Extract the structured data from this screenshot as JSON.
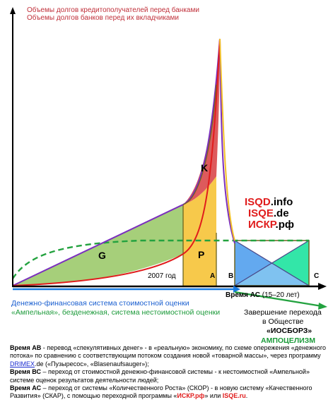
{
  "legend": {
    "line1": "Объемы долгов кредитополучателей перед банками",
    "line2": "Объемы долгов банков перед их вкладчиками"
  },
  "brand": {
    "line1_hl": "ISQD",
    "line1_rest": ".info",
    "line2_hl": "ISQE",
    "line2_rest": ".de",
    "line3_hl": "ИСКР",
    "line3_rest": ".рф"
  },
  "regions": {
    "g": "G",
    "k": "K",
    "p": "P"
  },
  "points": {
    "a": "A",
    "b": "B",
    "c": "C",
    "year": "2007 год"
  },
  "axis": {
    "time_label": "Время АС",
    "time_range": "(15–20 лет)"
  },
  "systems": {
    "blue": "Денежно-финансовая система стоимостной оценки",
    "green": "«Ампельная», безденежная, система нестоимостной оценки"
  },
  "completion": {
    "line1": "Завершение перехода",
    "line2": "в Обществе",
    "line3": "«ИОСБОРЗ»",
    "line4": "АМПОЦЕЛИЗМ"
  },
  "notes": {
    "ab_title": "Время АВ",
    "ab_text": " - перевод «спекулятивных денег» - в «реальную» экономику, по схеме опережения «денежного потока» по сравнению с соответствующим потоком создания новой «товарной массы», через программу ",
    "ab_link": "DRIMEX",
    "ab_tail": ".de («Пузыресос», «Blasenaufsauger»);",
    "bc_title": "Время ВС",
    "bc_text": " – переход от стоимостной денежно-финансовой системы - к нестоимостной «Ампельной» системе оценок результатов деятельности людей;",
    "ac_title": "Время АС",
    "ac_text": " – переход от системы «Количественного Роста» (СКОР) - в новую систему «Качественного Развития» (СКАР), с помощью переходной программы «",
    "ac_brand1": "ИСКР.рф",
    "ac_mid": "» или ",
    "ac_brand2": "ISQE.ru",
    "ac_end": "."
  },
  "colors": {
    "red": "#e01c1c",
    "green_fill": "#a6cf7a",
    "yellow_fill": "#f7c94b",
    "red_fill": "#dd5a5c",
    "blue_fill": "#63a9ef",
    "aqua_fill": "#33e6a8",
    "purple_line": "#7b2fbe",
    "dashed_green": "#23a23f",
    "olive_line": "#6d6420"
  }
}
